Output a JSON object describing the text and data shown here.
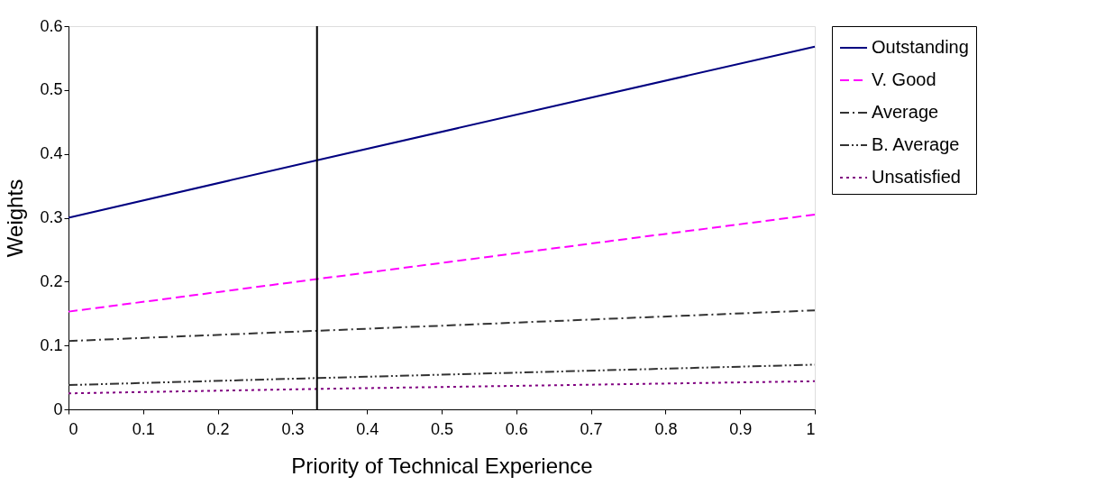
{
  "chart_data": {
    "type": "line",
    "xlabel": "Priority of Technical Experience",
    "ylabel": "Weights",
    "x": [
      0,
      0.333,
      1
    ],
    "series": [
      {
        "name": "Outstanding",
        "color": "#000080",
        "line_style": "solid",
        "values": [
          0.3,
          0.39,
          0.568
        ]
      },
      {
        "name": "V. Good",
        "color": "#ff00ff",
        "line_style": "dashed",
        "values": [
          0.153,
          0.204,
          0.305
        ]
      },
      {
        "name": "Average",
        "color": "#333333",
        "line_style": "dashdot",
        "values": [
          0.107,
          0.123,
          0.155
        ]
      },
      {
        "name": "B. Average",
        "color": "#333333",
        "line_style": "dashdotdot",
        "values": [
          0.038,
          0.049,
          0.07
        ]
      },
      {
        "name": "Unsatisfied",
        "color": "#800080",
        "line_style": "dotted",
        "values": [
          0.025,
          0.032,
          0.044
        ]
      }
    ],
    "xlim": [
      0,
      1
    ],
    "xticks": [
      0,
      0.1,
      0.2,
      0.3,
      0.4,
      0.5,
      0.6,
      0.7,
      0.8,
      0.9,
      1
    ],
    "ylim": [
      0,
      0.6
    ],
    "yticks": [
      0,
      0.1,
      0.2,
      0.3,
      0.4,
      0.5,
      0.6
    ],
    "ref_lines": [
      {
        "axis": "x",
        "value": 0.333,
        "color": "#000000"
      }
    ],
    "grid": false,
    "legend": "right",
    "marker": "none"
  }
}
